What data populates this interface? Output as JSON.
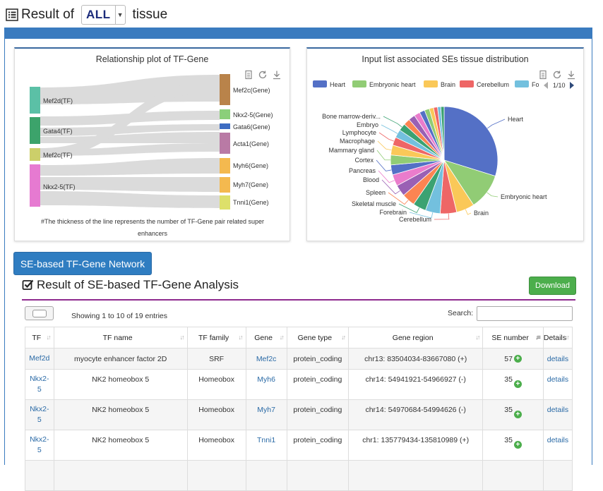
{
  "header": {
    "result_of": "Result of",
    "selected": "ALL",
    "tissue": "tissue"
  },
  "sankey": {
    "title": "Relationship plot of TF-Gene",
    "sources": [
      "Mef2d(TF)",
      "Gata4(TF)",
      "Mef2c(TF)",
      "Nkx2-5(TF)"
    ],
    "targets": [
      "Mef2c(Gene)",
      "Nkx2-5(Gene)",
      "Gata6(Gene)",
      "Acta1(Gene)",
      "Myh6(Gene)",
      "Myh7(Gene)",
      "Tnni1(Gene)"
    ],
    "note_line1": "#The thickness of the line represents the number of TF-Gene pair related super",
    "note_line2": "enhancers"
  },
  "pie": {
    "title": "Input list associated SEs tissue distribution",
    "legend": [
      "Heart",
      "Embryonic heart",
      "Brain",
      "Cerebellum",
      "Fo"
    ],
    "legend_colors": [
      "#5470c6",
      "#91cc75",
      "#fac858",
      "#ee6666",
      "#73c0de"
    ],
    "page": "1/10",
    "labels": [
      "Heart",
      "Embryonic heart",
      "Brain",
      "Cerebellum",
      "Forebrain",
      "Skeletal muscle",
      "Spleen",
      "Blood",
      "Pancreas",
      "Cortex",
      "Mammary gland",
      "Macrophage",
      "Lymphocyte",
      "Embryo",
      "Bone marrow-deriv..."
    ],
    "colors": [
      "#5470c6",
      "#91cc75",
      "#fac858",
      "#ee6666",
      "#73c0de",
      "#3ba272",
      "#fc8452",
      "#9a60b4",
      "#ea7ccc",
      "#5470c6",
      "#91cc75",
      "#fac858",
      "#ee6666",
      "#73c0de",
      "#3ba272",
      "#fc8452",
      "#9a60b4",
      "#ea7ccc",
      "#5470c6",
      "#91cc75",
      "#fac858",
      "#ee6666",
      "#73c0de",
      "#3ba272"
    ]
  },
  "network_button": "SE-based TF-Gene Network",
  "analysis": {
    "title": "Result of SE-based TF-Gene Analysis",
    "download": "Download",
    "showing": "Showing 1 to 10 of 19 entries",
    "search_label": "Search:",
    "columns": [
      "TF",
      "TF name",
      "TF family",
      "Gene",
      "Gene type",
      "Gene region",
      "SE number",
      "Details"
    ],
    "rows": [
      {
        "tf": "Mef2d",
        "tf2": "",
        "name": "myocyte enhancer factor 2D",
        "family": "SRF",
        "gene": "Mef2c",
        "type": "protein_coding",
        "region": "chr13:  83504034-83667080  (+)",
        "se": "57",
        "details": "details"
      },
      {
        "tf": "Nkx2-",
        "tf2": "5",
        "name": "NK2 homeobox 5",
        "family": "Homeobox",
        "gene": "Myh6",
        "type": "protein_coding",
        "region": "chr14:  54941921-54966927  (-)",
        "se": "35",
        "details": "details"
      },
      {
        "tf": "Nkx2-",
        "tf2": "5",
        "name": "NK2 homeobox 5",
        "family": "Homeobox",
        "gene": "Myh7",
        "type": "protein_coding",
        "region": "chr14:  54970684-54994626  (-)",
        "se": "35",
        "details": "details"
      },
      {
        "tf": "Nkx2-",
        "tf2": "5",
        "name": "NK2 homeobox 5",
        "family": "Homeobox",
        "gene": "Tnni1",
        "type": "protein_coding",
        "region": "chr1:  135779434-135810989  (+)",
        "se": "35",
        "details": "details"
      }
    ]
  }
}
